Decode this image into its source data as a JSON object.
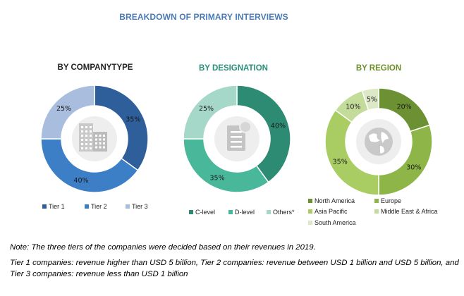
{
  "title": "BREAKDOWN OF PRIMARY INTERVIEWS",
  "colors": {
    "title": "#4a7ab5",
    "chart_titles": [
      "#222222",
      "#2a8f7a",
      "#6f8f2a"
    ]
  },
  "chart_data": [
    {
      "type": "pie",
      "donut": true,
      "title": "BY COMPANYTYPE",
      "center_icon": "building-icon",
      "slices": [
        {
          "label": "Tier 1",
          "value": 35,
          "data_label": "35%",
          "color": "#2e5f9a"
        },
        {
          "label": "Tier 2",
          "value": 40,
          "data_label": "40%",
          "color": "#3d7fc6"
        },
        {
          "label": "Tier 3",
          "value": 25,
          "data_label": "25%",
          "color": "#a9bedf"
        }
      ],
      "legend_position": "bottom"
    },
    {
      "type": "pie",
      "donut": true,
      "title": "BY DESIGNATION",
      "center_icon": "document-icon",
      "slices": [
        {
          "label": "C-level",
          "value": 40,
          "data_label": "40%",
          "color": "#2e8b73"
        },
        {
          "label": "D-level",
          "value": 35,
          "data_label": "35%",
          "color": "#49b89a"
        },
        {
          "label": "Others*",
          "value": 25,
          "data_label": "25%",
          "color": "#a6d8c9"
        }
      ],
      "legend_position": "bottom"
    },
    {
      "type": "pie",
      "donut": true,
      "title": "BY REGION",
      "center_icon": "globe-icon",
      "slices": [
        {
          "label": "North America",
          "value": 20,
          "data_label": "20%",
          "color": "#6c9133"
        },
        {
          "label": "Europe",
          "value": 30,
          "data_label": "30%",
          "color": "#8eb548"
        },
        {
          "label": "Asia Pacific",
          "value": 35,
          "data_label": "35%",
          "color": "#a9cd63"
        },
        {
          "label": "Middle East & Africa",
          "value": 10,
          "data_label": "10%",
          "color": "#c4dc9a"
        },
        {
          "label": "South America",
          "value": 5,
          "data_label": "5%",
          "color": "#dde9c6"
        }
      ],
      "legend_position": "bottom"
    }
  ],
  "notes": [
    "Note: The three tiers of the companies were decided based on their revenues in 2019.",
    "Tier 1 companies: revenue higher than USD 5 billion, Tier 2 companies: revenue between USD 1 billion and USD 5 billion, and Tier 3 companies: revenue less than USD 1 billion"
  ]
}
